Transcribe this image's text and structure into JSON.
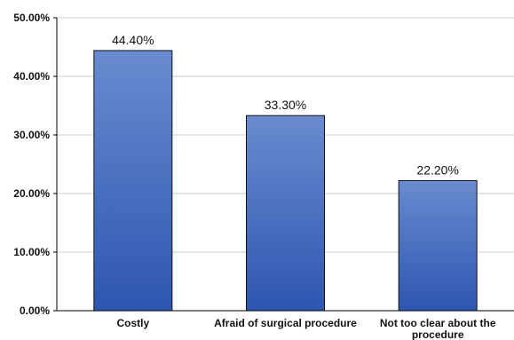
{
  "chart_data": {
    "type": "bar",
    "categories": [
      "Costly",
      "Afraid of surgical procedure",
      "Not too clear about the procedure"
    ],
    "category_label_lines": [
      [
        "Costly"
      ],
      [
        "Afraid of surgical procedure"
      ],
      [
        "Not too clear about the",
        "procedure"
      ]
    ],
    "values": [
      44.4,
      33.3,
      22.2
    ],
    "value_labels": [
      "44.40%",
      "33.30%",
      "22.20%"
    ],
    "ylim": [
      0,
      50
    ],
    "yticks": [
      0,
      10,
      20,
      30,
      40,
      50
    ],
    "ytick_labels": [
      "0.00%",
      "10.00%",
      "20.00%",
      "30.00%",
      "40.00%",
      "50.00%"
    ],
    "title": "",
    "xlabel": "",
    "ylabel": "",
    "grid": true,
    "legend": "none",
    "colors": {
      "bar_top": "#6a8bd0",
      "bar_bottom": "#2d56b0",
      "bar_outline": "#111111",
      "grid": "#cccccc",
      "axis": "#000000"
    }
  }
}
